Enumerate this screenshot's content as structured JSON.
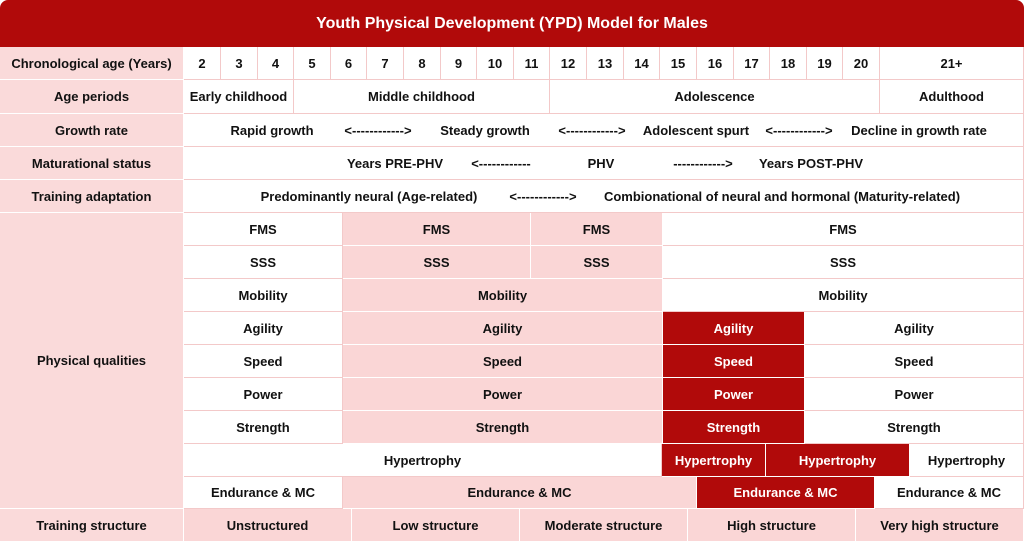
{
  "title": "Youth Physical Development (YPD) Model for Males",
  "rows": {
    "age": {
      "label": "Chronological age (Years)",
      "ages": [
        "2",
        "3",
        "4",
        "5",
        "6",
        "7",
        "8",
        "9",
        "10",
        "11",
        "12",
        "13",
        "14",
        "15",
        "16",
        "17",
        "18",
        "19",
        "20",
        "21+"
      ]
    },
    "periods": {
      "label": "Age periods",
      "items": [
        "Early childhood",
        "Middle childhood",
        "Adolescence",
        "Adulthood"
      ]
    },
    "growth": {
      "label": "Growth rate",
      "texts": [
        "Rapid growth",
        "<------------>",
        "Steady growth",
        "<------------>",
        "Adolescent spurt",
        "<------------>",
        "Decline in growth rate"
      ]
    },
    "maturation": {
      "label": "Maturational status",
      "texts": [
        "Years PRE-PHV",
        "<------------",
        "PHV",
        "------------>",
        "Years POST-PHV"
      ]
    },
    "adaptation": {
      "label": "Training adaptation",
      "texts": [
        "Predominantly neural (Age-related)",
        "<------------>",
        "Combionational of neural and hormonal (Maturity-related)"
      ]
    },
    "qualities": {
      "label": "Physical qualities",
      "fms": "FMS",
      "sss": "SSS",
      "mobility": "Mobility",
      "agility": "Agility",
      "speed": "Speed",
      "power": "Power",
      "strength": "Strength",
      "hypertrophy": "Hypertrophy",
      "endurance": "Endurance & MC"
    },
    "structure": {
      "label": "Training structure",
      "items": [
        "Unstructured",
        "Low structure",
        "Moderate structure",
        "High structure",
        "Very high structure"
      ]
    }
  },
  "colors": {
    "dark_red": "#b10a0a",
    "pink": "#fad6d6",
    "header_pink": "#fadada"
  }
}
